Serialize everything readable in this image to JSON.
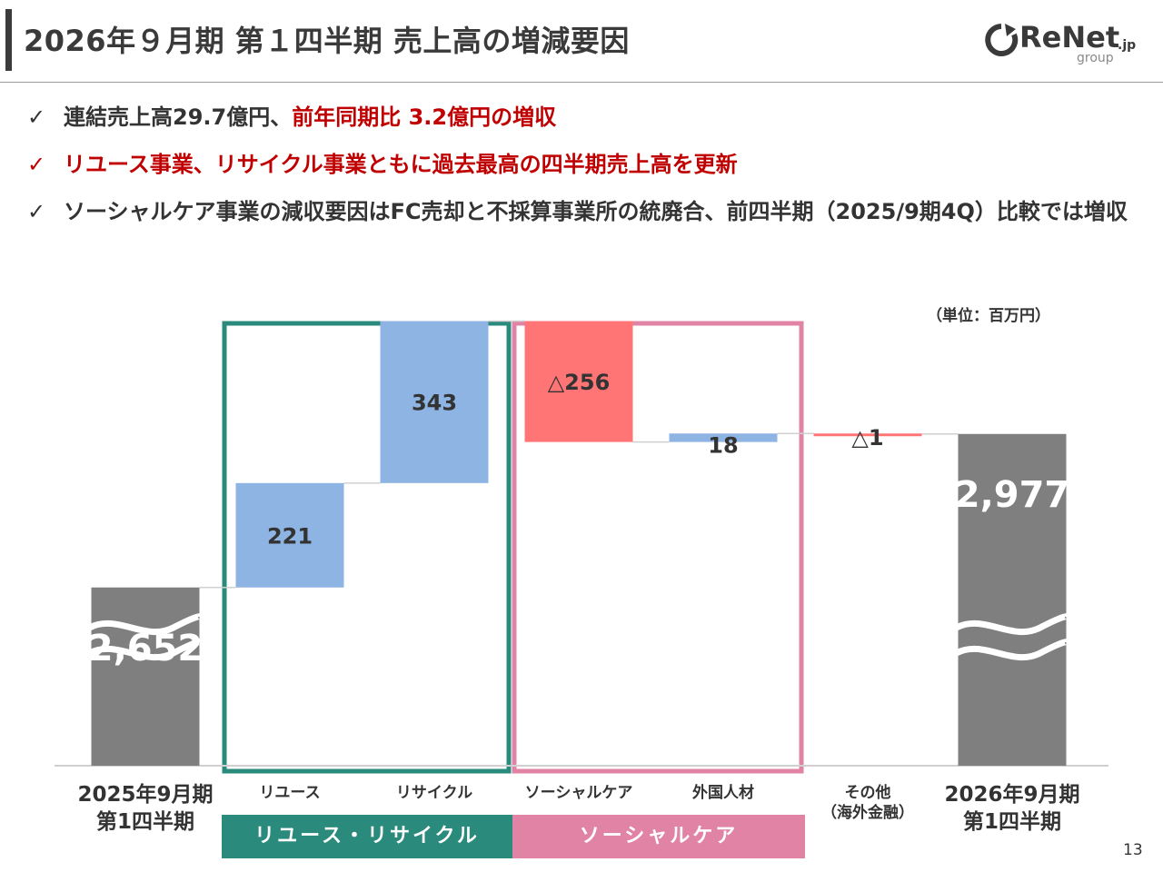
{
  "header": {
    "title": "2026年９月期 第１四半期 売上高の増減要因",
    "logo_main": "ReNet",
    "logo_suffix": ".jp",
    "logo_sub": "group"
  },
  "bullets": [
    {
      "check": "✓",
      "text": "連結売上高29.7億円、",
      "highlight": "前年同期比 3.2億円の増収"
    },
    {
      "check": "✓",
      "text": "",
      "highlight": "リユース事業、リサイクル事業ともに過去最高の四半期売上高を更新"
    },
    {
      "check": "✓",
      "text": "ソーシャルケア事業の減収要因はFC売却と不採算事業所の統廃合、前四半期（2025/9期4Q）比較では増収",
      "highlight": ""
    }
  ],
  "unit_label": "（単位：百万円）",
  "segments": {
    "reuse_recycle": "リユース・リサイクル",
    "social_care": "ソーシャルケア"
  },
  "chart_data": {
    "type": "waterfall",
    "title": "2026年９月期 第１四半期 売上高の増減要因",
    "unit": "百万円",
    "axis_broken": true,
    "categories": [
      "2025年9月期\n第1四半期",
      "リユース",
      "リサイクル",
      "ソーシャルケア",
      "外国人材",
      "その他\n（海外金融）",
      "2026年9月期\n第1四半期"
    ],
    "values": [
      2652,
      221,
      343,
      -256,
      18,
      -1,
      2977
    ],
    "kinds": [
      "total",
      "delta",
      "delta",
      "delta",
      "delta",
      "delta",
      "total"
    ],
    "labels": [
      "2,652",
      "221",
      "343",
      "△256",
      "18",
      "△1",
      "2,977"
    ],
    "colors": {
      "total": "#7f7f7f",
      "increase": "#8eb4e3",
      "decrease": "#ff7575",
      "reuse_box": "#2a8a7c",
      "social_box": "#e083a5"
    }
  },
  "page_number": "13"
}
